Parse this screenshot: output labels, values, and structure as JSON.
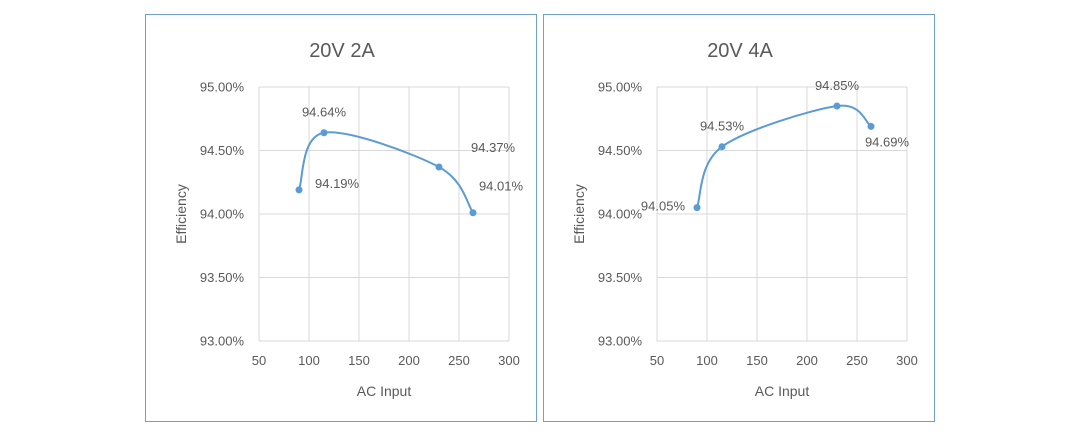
{
  "chart_data": [
    {
      "type": "line",
      "title": "20V 2A",
      "xlabel": "AC Input",
      "ylabel": "Efficiency",
      "xlim": [
        50,
        300
      ],
      "ylim": [
        93.0,
        95.0
      ],
      "x_ticks": [
        "50",
        "100",
        "150",
        "200",
        "250",
        "300"
      ],
      "y_ticks": [
        "93.00%",
        "93.50%",
        "94.00%",
        "94.50%",
        "95.00%"
      ],
      "grid": true,
      "legend": "none",
      "smooth": true,
      "color": "#5b9bd5",
      "series": [
        {
          "x": [
            90,
            115,
            230,
            264
          ],
          "values": [
            94.19,
            94.64,
            94.37,
            94.01
          ],
          "labels": [
            "94.19%",
            "94.64%",
            "94.37%",
            "94.01%"
          ]
        }
      ]
    },
    {
      "type": "line",
      "title": "20V 4A",
      "xlabel": "AC Input",
      "ylabel": "Efficiency",
      "xlim": [
        50,
        300
      ],
      "ylim": [
        93.0,
        95.0
      ],
      "x_ticks": [
        "50",
        "100",
        "150",
        "200",
        "250",
        "300"
      ],
      "y_ticks": [
        "93.00%",
        "93.50%",
        "94.00%",
        "94.50%",
        "95.00%"
      ],
      "grid": true,
      "legend": "none",
      "smooth": true,
      "color": "#5b9bd5",
      "series": [
        {
          "x": [
            90,
            115,
            230,
            264
          ],
          "values": [
            94.05,
            94.53,
            94.85,
            94.69
          ],
          "labels": [
            "94.05%",
            "94.53%",
            "94.85%",
            "94.69%"
          ]
        }
      ]
    }
  ]
}
